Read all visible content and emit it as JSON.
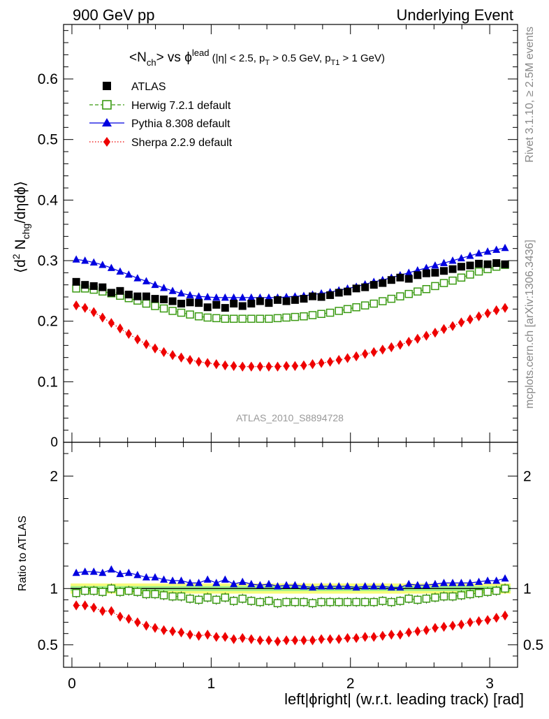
{
  "header": {
    "left": "900 GeV pp",
    "right": "Underlying Event"
  },
  "side_text": {
    "rivet": "Rivet 3.1.10, ≥ 2.5M events",
    "mcplots": "mcplots.cern.ch [arXiv:1306.3436]"
  },
  "title": {
    "n_open": "<N",
    "n_sub": "ch",
    "n_close": "> vs ",
    "phi": "ϕ",
    "phi_sup": "lead",
    "cut_open": " (|η| < 2.5, p",
    "pt_sub": "T",
    "cut_mid": " > 0.5 GeV, p",
    "pt1_sub": "T1",
    "cut_close": " > 1 GeV)"
  },
  "ylabel_main": {
    "open": "⟨d",
    "sup": "2",
    "mid": " N",
    "sub": "chg",
    "close": "/dηdϕ⟩"
  },
  "ylabel_ratio": "Ratio to ATLAS",
  "xlabel": "left|ϕright| (w.r.t. leading track) [rad]",
  "analysis_id": "ATLAS_2010_S8894728",
  "legend": [
    {
      "label": "ATLAS"
    },
    {
      "label": "Herwig 7.2.1 default"
    },
    {
      "label": "Pythia 8.308 default"
    },
    {
      "label": "Sherpa 2.2.9 default"
    }
  ],
  "colors": {
    "atlas": "#000000",
    "herwig": "#3a9a12",
    "pythia": "#0000e0",
    "sherpa": "#ee0000",
    "band_outer": "#f7fb7a",
    "band_inner": "#9cf08a"
  },
  "chart_data": {
    "type": "scatter",
    "x_range": [
      -0.06,
      3.2
    ],
    "x_ticks": [
      "0",
      "1",
      "2",
      "3"
    ],
    "main_ylim": [
      0,
      0.69
    ],
    "main_y_ticks": [
      "0.1",
      "0.2",
      "0.3",
      "0.4",
      "0.5",
      "0.6"
    ],
    "main_y_zero_label": "0",
    "ratio_ylim": [
      0.3,
      2.3
    ],
    "ratio_y_ticks": [
      "0.5",
      "1",
      "2"
    ],
    "x": [
      0.031,
      0.094,
      0.157,
      0.22,
      0.283,
      0.346,
      0.408,
      0.471,
      0.534,
      0.597,
      0.66,
      0.723,
      0.785,
      0.848,
      0.911,
      0.974,
      1.037,
      1.1,
      1.162,
      1.225,
      1.288,
      1.351,
      1.414,
      1.477,
      1.54,
      1.602,
      1.665,
      1.728,
      1.791,
      1.854,
      1.917,
      1.979,
      2.042,
      2.105,
      2.168,
      2.231,
      2.294,
      2.357,
      2.419,
      2.482,
      2.545,
      2.608,
      2.671,
      2.734,
      2.796,
      2.859,
      2.922,
      2.985,
      3.048,
      3.11
    ],
    "series": [
      {
        "name": "ATLAS",
        "values": [
          0.265,
          0.26,
          0.258,
          0.256,
          0.247,
          0.25,
          0.244,
          0.241,
          0.241,
          0.237,
          0.236,
          0.233,
          0.229,
          0.231,
          0.23,
          0.223,
          0.227,
          0.222,
          0.229,
          0.225,
          0.229,
          0.233,
          0.23,
          0.235,
          0.233,
          0.235,
          0.237,
          0.241,
          0.24,
          0.243,
          0.247,
          0.249,
          0.254,
          0.256,
          0.26,
          0.263,
          0.268,
          0.272,
          0.27,
          0.276,
          0.279,
          0.28,
          0.283,
          0.286,
          0.29,
          0.292,
          0.295,
          0.294,
          0.296,
          0.294
        ]
      },
      {
        "name": "Herwig 7.2.1 default",
        "values": [
          0.254,
          0.254,
          0.252,
          0.249,
          0.246,
          0.242,
          0.238,
          0.234,
          0.229,
          0.225,
          0.221,
          0.217,
          0.214,
          0.211,
          0.208,
          0.206,
          0.205,
          0.204,
          0.204,
          0.204,
          0.204,
          0.204,
          0.204,
          0.205,
          0.206,
          0.207,
          0.208,
          0.21,
          0.212,
          0.214,
          0.217,
          0.22,
          0.223,
          0.226,
          0.229,
          0.233,
          0.237,
          0.241,
          0.245,
          0.249,
          0.253,
          0.258,
          0.263,
          0.267,
          0.272,
          0.277,
          0.282,
          0.286,
          0.29,
          0.293
        ]
      },
      {
        "name": "Pythia 8.308 default",
        "values": [
          0.302,
          0.3,
          0.297,
          0.293,
          0.288,
          0.282,
          0.277,
          0.271,
          0.266,
          0.26,
          0.255,
          0.25,
          0.246,
          0.243,
          0.241,
          0.24,
          0.239,
          0.239,
          0.239,
          0.239,
          0.239,
          0.239,
          0.239,
          0.239,
          0.24,
          0.241,
          0.242,
          0.244,
          0.246,
          0.248,
          0.251,
          0.254,
          0.257,
          0.261,
          0.265,
          0.268,
          0.272,
          0.276,
          0.28,
          0.284,
          0.288,
          0.292,
          0.296,
          0.3,
          0.304,
          0.308,
          0.312,
          0.315,
          0.318,
          0.321
        ]
      },
      {
        "name": "Sherpa 2.2.9 default",
        "values": [
          0.226,
          0.222,
          0.215,
          0.206,
          0.197,
          0.188,
          0.179,
          0.17,
          0.162,
          0.155,
          0.149,
          0.144,
          0.14,
          0.136,
          0.133,
          0.131,
          0.129,
          0.127,
          0.126,
          0.125,
          0.125,
          0.125,
          0.125,
          0.125,
          0.126,
          0.126,
          0.127,
          0.129,
          0.131,
          0.133,
          0.136,
          0.139,
          0.142,
          0.146,
          0.149,
          0.153,
          0.157,
          0.161,
          0.166,
          0.171,
          0.176,
          0.181,
          0.187,
          0.192,
          0.198,
          0.203,
          0.208,
          0.213,
          0.218,
          0.222
        ]
      }
    ],
    "ratio_series": [
      {
        "name": "Herwig 7.2.1 default",
        "values": [
          0.96,
          0.98,
          0.98,
          0.97,
          1.0,
          0.97,
          0.98,
          0.97,
          0.95,
          0.95,
          0.94,
          0.93,
          0.93,
          0.91,
          0.9,
          0.92,
          0.9,
          0.92,
          0.89,
          0.91,
          0.89,
          0.88,
          0.89,
          0.87,
          0.88,
          0.88,
          0.88,
          0.87,
          0.88,
          0.88,
          0.88,
          0.88,
          0.88,
          0.88,
          0.88,
          0.89,
          0.88,
          0.89,
          0.91,
          0.9,
          0.91,
          0.92,
          0.93,
          0.93,
          0.94,
          0.95,
          0.96,
          0.97,
          0.98,
          1.0
        ]
      },
      {
        "name": "Pythia 8.308 default",
        "values": [
          1.14,
          1.15,
          1.15,
          1.14,
          1.17,
          1.13,
          1.14,
          1.12,
          1.1,
          1.1,
          1.08,
          1.07,
          1.07,
          1.05,
          1.05,
          1.08,
          1.05,
          1.08,
          1.04,
          1.06,
          1.04,
          1.03,
          1.04,
          1.02,
          1.03,
          1.03,
          1.02,
          1.01,
          1.02,
          1.02,
          1.02,
          1.02,
          1.01,
          1.02,
          1.02,
          1.02,
          1.01,
          1.01,
          1.04,
          1.03,
          1.03,
          1.04,
          1.05,
          1.05,
          1.05,
          1.05,
          1.06,
          1.07,
          1.07,
          1.09
        ]
      },
      {
        "name": "Sherpa 2.2.9 default",
        "values": [
          0.85,
          0.85,
          0.83,
          0.8,
          0.8,
          0.75,
          0.73,
          0.7,
          0.67,
          0.65,
          0.63,
          0.62,
          0.61,
          0.59,
          0.58,
          0.59,
          0.57,
          0.57,
          0.55,
          0.56,
          0.55,
          0.54,
          0.54,
          0.53,
          0.54,
          0.54,
          0.54,
          0.54,
          0.55,
          0.55,
          0.55,
          0.56,
          0.56,
          0.57,
          0.57,
          0.58,
          0.59,
          0.59,
          0.61,
          0.62,
          0.63,
          0.65,
          0.66,
          0.67,
          0.68,
          0.7,
          0.71,
          0.72,
          0.74,
          0.76
        ]
      }
    ],
    "uncertainty_band": {
      "outer_halfwidth": 0.045,
      "inner_halfwidth": 0.022
    },
    "legend_position": "top-left",
    "grid": false
  }
}
